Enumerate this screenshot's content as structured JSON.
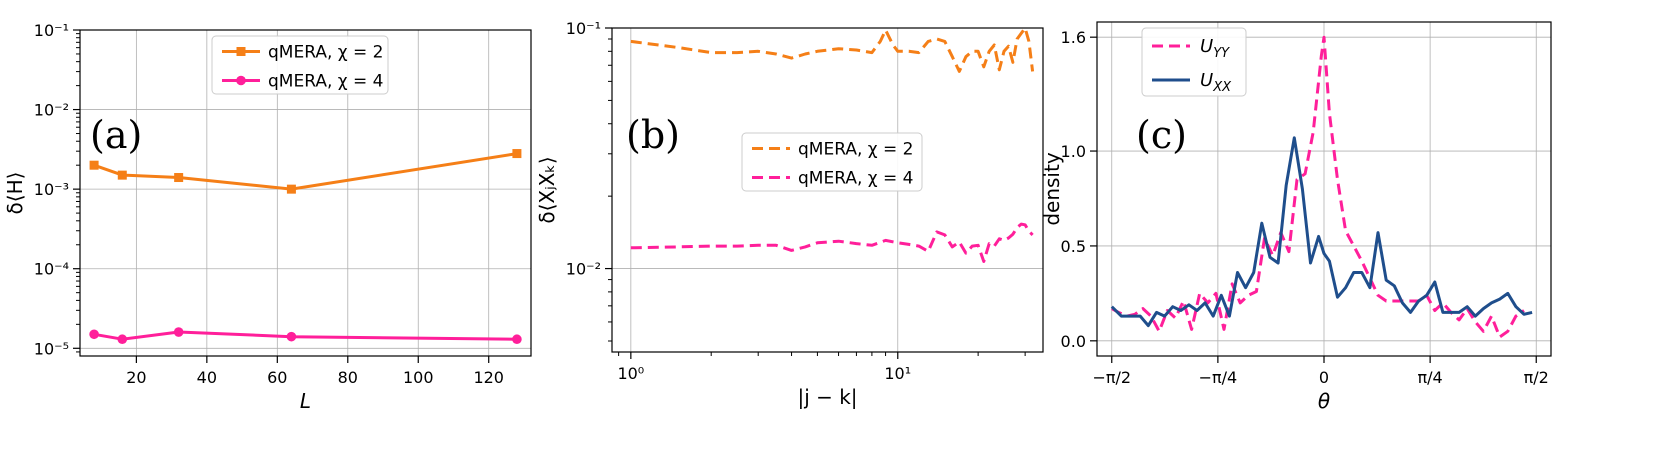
{
  "chart_data": [
    {
      "panel": "(a)",
      "type": "line",
      "xlabel": "L",
      "ylabel": "δ⟨H⟩",
      "xscale": "linear",
      "yscale": "log",
      "xlim": [
        4,
        132
      ],
      "ylim": [
        8e-06,
        0.1
      ],
      "xticks": [
        20,
        40,
        60,
        80,
        100,
        120
      ],
      "xtick_labels": [
        "20",
        "40",
        "60",
        "80",
        "100",
        "120"
      ],
      "yticks": [
        1e-05,
        0.0001,
        0.001,
        0.01,
        0.1
      ],
      "ytick_labels": [
        "10⁻⁵",
        "10⁻⁴",
        "10⁻³",
        "10⁻²",
        "10⁻¹"
      ],
      "grid": true,
      "legend_position": "top-center",
      "series": [
        {
          "name": "qMERA, χ = 2",
          "color": "#f57f17",
          "marker": "square",
          "dash": "solid",
          "x": [
            8,
            16,
            32,
            64,
            128
          ],
          "y": [
            0.002,
            0.0015,
            0.0014,
            0.001,
            0.0028
          ]
        },
        {
          "name": "qMERA, χ = 4",
          "color": "#ff1f9a",
          "marker": "circle",
          "dash": "solid",
          "x": [
            8,
            16,
            32,
            64,
            128
          ],
          "y": [
            1.5e-05,
            1.3e-05,
            1.6e-05,
            1.4e-05,
            1.3e-05
          ]
        }
      ]
    },
    {
      "panel": "(b)",
      "type": "line",
      "xlabel": "|j − k|",
      "ylabel": "δ⟨XⱼXₖ⟩",
      "xscale": "log",
      "yscale": "log",
      "xlim": [
        0.85,
        35
      ],
      "ylim": [
        0.0045,
        0.1
      ],
      "xticks": [
        1,
        10
      ],
      "xtick_labels": [
        "10⁰",
        "10¹"
      ],
      "yticks": [
        0.01,
        0.1
      ],
      "ytick_labels": [
        "10⁻²",
        "10⁻¹"
      ],
      "grid": true,
      "legend_position": "center-right",
      "series": [
        {
          "name": "qMERA, χ = 2",
          "color": "#f57f17",
          "dash": "dashed",
          "x": [
            1,
            1.5,
            2,
            2.5,
            3,
            3.5,
            4,
            4.5,
            5,
            5.5,
            6,
            7,
            8,
            8.6,
            9,
            9.6,
            10,
            11,
            12,
            13,
            14,
            15,
            16,
            17,
            18,
            19,
            20,
            21,
            22,
            23,
            24,
            25,
            26,
            27,
            28,
            29,
            30,
            31,
            32
          ],
          "y": [
            0.088,
            0.083,
            0.079,
            0.079,
            0.08,
            0.078,
            0.075,
            0.078,
            0.08,
            0.081,
            0.082,
            0.081,
            0.079,
            0.088,
            0.098,
            0.085,
            0.08,
            0.08,
            0.079,
            0.088,
            0.09,
            0.088,
            0.076,
            0.066,
            0.076,
            0.08,
            0.08,
            0.069,
            0.08,
            0.085,
            0.067,
            0.08,
            0.084,
            0.072,
            0.09,
            0.095,
            0.1,
            0.088,
            0.066
          ]
        },
        {
          "name": "qMERA, χ = 4",
          "color": "#ff1f9a",
          "dash": "dashed",
          "x": [
            1,
            1.5,
            2,
            2.5,
            3,
            3.5,
            4,
            4.5,
            5,
            6,
            7,
            8,
            9,
            10,
            11,
            12,
            13,
            14,
            15,
            16,
            17,
            18,
            19,
            20,
            21,
            22,
            23,
            24,
            25,
            26,
            27,
            28,
            29,
            30,
            31,
            32
          ],
          "y": [
            0.0122,
            0.0123,
            0.0124,
            0.0124,
            0.0125,
            0.0125,
            0.0119,
            0.0123,
            0.0128,
            0.013,
            0.0127,
            0.0125,
            0.0131,
            0.0128,
            0.0126,
            0.0124,
            0.0118,
            0.0142,
            0.0138,
            0.0123,
            0.0129,
            0.0116,
            0.0124,
            0.0125,
            0.0107,
            0.0127,
            0.0124,
            0.0133,
            0.0131,
            0.0134,
            0.0139,
            0.0148,
            0.0153,
            0.0152,
            0.0143,
            0.0138
          ]
        }
      ]
    },
    {
      "panel": "(c)",
      "type": "line",
      "xlabel": "θ",
      "ylabel": "density",
      "xscale": "linear",
      "yscale": "linear",
      "xlim": [
        -1.68,
        1.68
      ],
      "ylim": [
        -0.08,
        1.68
      ],
      "xticks": [
        -1.5708,
        -0.7854,
        0,
        0.7854,
        1.5708
      ],
      "xtick_labels": [
        "−π/2",
        "−π/4",
        "0",
        "π/4",
        "π/2"
      ],
      "yticks": [
        0.0,
        0.5,
        1.0,
        1.6
      ],
      "ytick_labels": [
        "0.0",
        "0.5",
        "1.0",
        "1.6"
      ],
      "grid": true,
      "legend_position": "top-left",
      "series": [
        {
          "name": "U_YY",
          "name_main": "U",
          "name_sub": "YY",
          "color": "#ff1f9a",
          "dash": "dashed",
          "x": [
            -1.5708,
            -1.52,
            -1.46,
            -1.4,
            -1.34,
            -1.28,
            -1.22,
            -1.16,
            -1.1,
            -1.04,
            -0.98,
            -0.92,
            -0.86,
            -0.8,
            -0.74,
            -0.68,
            -0.62,
            -0.56,
            -0.5,
            -0.44,
            -0.38,
            -0.32,
            -0.26,
            -0.2,
            -0.14,
            -0.08,
            -0.02,
            0.0,
            0.04,
            0.1,
            0.16,
            0.22,
            0.28,
            0.34,
            0.4,
            0.46,
            0.52,
            0.58,
            0.64,
            0.7,
            0.76,
            0.82,
            0.88,
            0.94,
            1.0,
            1.06,
            1.12,
            1.18,
            1.24,
            1.3,
            1.36,
            1.42,
            1.48
          ],
          "y": [
            0.17,
            0.15,
            0.13,
            0.14,
            0.17,
            0.13,
            0.05,
            0.16,
            0.12,
            0.21,
            0.06,
            0.25,
            0.2,
            0.25,
            0.06,
            0.3,
            0.2,
            0.24,
            0.26,
            0.54,
            0.45,
            0.57,
            0.47,
            0.85,
            0.88,
            1.1,
            1.5,
            1.6,
            1.2,
            0.85,
            0.58,
            0.5,
            0.42,
            0.33,
            0.24,
            0.21,
            0.21,
            0.21,
            0.21,
            0.21,
            0.24,
            0.16,
            0.2,
            0.15,
            0.11,
            0.17,
            0.1,
            0.05,
            0.13,
            0.02,
            0.05,
            0.13,
            0.16
          ]
        },
        {
          "name": "U_XX",
          "name_main": "U",
          "name_sub": "XX",
          "color": "#1f4e8c",
          "dash": "solid",
          "x": [
            -1.5708,
            -1.5,
            -1.43,
            -1.36,
            -1.3,
            -1.24,
            -1.18,
            -1.12,
            -1.06,
            -1.0,
            -0.94,
            -0.88,
            -0.82,
            -0.76,
            -0.7,
            -0.64,
            -0.58,
            -0.52,
            -0.46,
            -0.4,
            -0.34,
            -0.28,
            -0.22,
            -0.16,
            -0.1,
            -0.04,
            0.0,
            0.04,
            0.1,
            0.16,
            0.22,
            0.28,
            0.34,
            0.4,
            0.46,
            0.52,
            0.58,
            0.64,
            0.7,
            0.76,
            0.82,
            0.88,
            0.94,
            1.0,
            1.06,
            1.12,
            1.18,
            1.24,
            1.3,
            1.36,
            1.42,
            1.48,
            1.54
          ],
          "y": [
            0.18,
            0.13,
            0.13,
            0.13,
            0.08,
            0.15,
            0.13,
            0.18,
            0.16,
            0.19,
            0.16,
            0.2,
            0.13,
            0.24,
            0.13,
            0.36,
            0.28,
            0.36,
            0.62,
            0.44,
            0.41,
            0.82,
            1.07,
            0.8,
            0.41,
            0.55,
            0.46,
            0.42,
            0.23,
            0.28,
            0.36,
            0.36,
            0.28,
            0.57,
            0.32,
            0.29,
            0.2,
            0.15,
            0.21,
            0.24,
            0.31,
            0.15,
            0.15,
            0.15,
            0.18,
            0.13,
            0.17,
            0.2,
            0.22,
            0.25,
            0.18,
            0.14,
            0.15
          ]
        }
      ]
    }
  ]
}
